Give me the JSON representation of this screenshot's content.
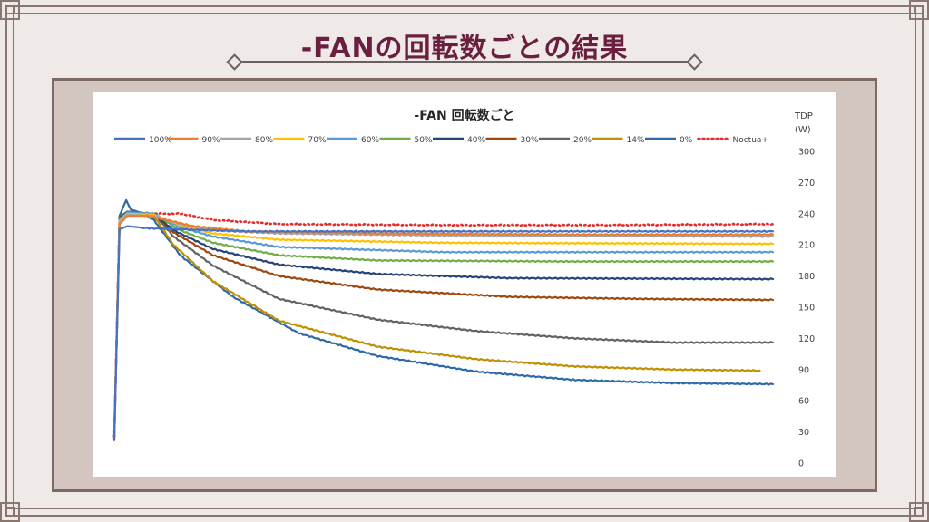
{
  "page": {
    "title": "-FANの回転数ごとの結果"
  },
  "chart_data": {
    "type": "line",
    "title": "-FAN 回転数ごと",
    "ylabel": "TDP (W)",
    "ylabel_lines": [
      "TDP",
      "(W)"
    ],
    "xlabel": "",
    "ylim": [
      0,
      300
    ],
    "yticks": [
      0,
      30,
      60,
      90,
      120,
      150,
      180,
      210,
      240,
      270,
      300
    ],
    "y_axis_position": "right",
    "grid": false,
    "legend_position": "top",
    "x_range": [
      0,
      100
    ],
    "series": [
      {
        "name": "100%",
        "color": "#4472c4",
        "points": [
          [
            0,
            25
          ],
          [
            0.8,
            225
          ],
          [
            2,
            228
          ],
          [
            5,
            226
          ],
          [
            10,
            225
          ],
          [
            20,
            223
          ],
          [
            40,
            223
          ],
          [
            70,
            223
          ],
          [
            100,
            223
          ]
        ]
      },
      {
        "name": "90%",
        "color": "#ed7d31",
        "points": [
          [
            0,
            25
          ],
          [
            0.8,
            230
          ],
          [
            2,
            238
          ],
          [
            5,
            238
          ],
          [
            8,
            234
          ],
          [
            12,
            228
          ],
          [
            20,
            223
          ],
          [
            40,
            221
          ],
          [
            70,
            220
          ],
          [
            100,
            220
          ]
        ]
      },
      {
        "name": "80%",
        "color": "#a5a5a5",
        "points": [
          [
            0,
            25
          ],
          [
            0.8,
            232
          ],
          [
            2,
            239
          ],
          [
            6,
            238
          ],
          [
            10,
            230
          ],
          [
            15,
            224
          ],
          [
            25,
            221
          ],
          [
            50,
            219
          ],
          [
            100,
            218
          ]
        ]
      },
      {
        "name": "70%",
        "color": "#ffc000",
        "points": [
          [
            0,
            25
          ],
          [
            0.8,
            233
          ],
          [
            2,
            240
          ],
          [
            6,
            239
          ],
          [
            10,
            229
          ],
          [
            15,
            221
          ],
          [
            25,
            215
          ],
          [
            50,
            212
          ],
          [
            100,
            211
          ]
        ]
      },
      {
        "name": "60%",
        "color": "#5b9bd5",
        "points": [
          [
            0,
            25
          ],
          [
            0.8,
            234
          ],
          [
            2,
            241
          ],
          [
            6,
            240
          ],
          [
            10,
            227
          ],
          [
            15,
            218
          ],
          [
            25,
            208
          ],
          [
            50,
            203
          ],
          [
            100,
            203
          ]
        ]
      },
      {
        "name": "50%",
        "color": "#70ad47",
        "points": [
          [
            0,
            25
          ],
          [
            0.8,
            235
          ],
          [
            2,
            241
          ],
          [
            6,
            240
          ],
          [
            10,
            224
          ],
          [
            15,
            212
          ],
          [
            25,
            200
          ],
          [
            40,
            195
          ],
          [
            70,
            194
          ],
          [
            100,
            194
          ]
        ]
      },
      {
        "name": "40%",
        "color": "#264478",
        "points": [
          [
            0,
            25
          ],
          [
            0.8,
            236
          ],
          [
            2,
            241
          ],
          [
            6,
            240
          ],
          [
            9,
            224
          ],
          [
            15,
            206
          ],
          [
            25,
            191
          ],
          [
            40,
            182
          ],
          [
            60,
            178
          ],
          [
            100,
            177
          ]
        ]
      },
      {
        "name": "30%",
        "color": "#9e480e",
        "points": [
          [
            0,
            25
          ],
          [
            0.8,
            236
          ],
          [
            2,
            241
          ],
          [
            6,
            240
          ],
          [
            9,
            222
          ],
          [
            15,
            200
          ],
          [
            25,
            180
          ],
          [
            40,
            167
          ],
          [
            60,
            160
          ],
          [
            80,
            158
          ],
          [
            100,
            157
          ]
        ]
      },
      {
        "name": "20%",
        "color": "#636363",
        "points": [
          [
            0,
            25
          ],
          [
            0.8,
            237
          ],
          [
            2,
            242
          ],
          [
            6,
            240
          ],
          [
            9,
            218
          ],
          [
            15,
            190
          ],
          [
            25,
            158
          ],
          [
            40,
            138
          ],
          [
            55,
            127
          ],
          [
            70,
            120
          ],
          [
            85,
            116
          ],
          [
            100,
            116
          ]
        ]
      },
      {
        "name": "14%",
        "color": "#bf9000",
        "points": [
          [
            0,
            25
          ],
          [
            0.8,
            237
          ],
          [
            2,
            242
          ],
          [
            6,
            238
          ],
          [
            9,
            210
          ],
          [
            15,
            175
          ],
          [
            25,
            137
          ],
          [
            40,
            112
          ],
          [
            55,
            100
          ],
          [
            70,
            93
          ],
          [
            85,
            90
          ],
          [
            98,
            89
          ]
        ]
      },
      {
        "name": "0%",
        "color": "#2e6aa8",
        "points": [
          [
            0,
            22
          ],
          [
            0.8,
            238
          ],
          [
            1.8,
            253
          ],
          [
            2.5,
            244
          ],
          [
            4,
            241
          ],
          [
            6,
            234
          ],
          [
            10,
            200
          ],
          [
            18,
            160
          ],
          [
            28,
            125
          ],
          [
            40,
            103
          ],
          [
            55,
            88
          ],
          [
            70,
            80
          ],
          [
            85,
            77
          ],
          [
            100,
            76
          ]
        ]
      },
      {
        "name": "Noctua+",
        "color": "#e22d2d",
        "dash": true,
        "points": [
          [
            0,
            25
          ],
          [
            0.8,
            238
          ],
          [
            2,
            240
          ],
          [
            10,
            240
          ],
          [
            15,
            234
          ],
          [
            25,
            230
          ],
          [
            50,
            229
          ],
          [
            75,
            229
          ],
          [
            100,
            230
          ]
        ]
      }
    ]
  }
}
